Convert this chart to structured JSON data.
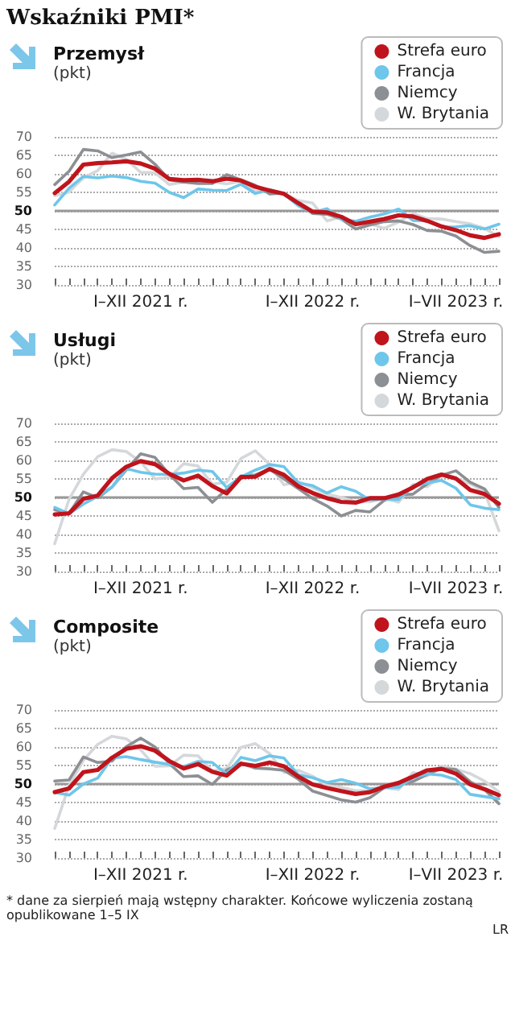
{
  "chart_data": [
    {
      "type": "line",
      "title": "Wskaźniki PMI*",
      "subtitle": "Przemysł",
      "ylabel": "(pkt)",
      "categories": [
        null,
        null,
        null,
        null,
        null,
        null,
        "I–XII 2021 r.",
        null,
        null,
        null,
        null,
        null,
        null,
        null,
        null,
        null,
        null,
        null,
        "I–XII 2022 r.",
        null,
        null,
        null,
        null,
        null,
        null,
        null,
        null,
        null,
        "I–VII 2023 r.",
        null,
        null,
        null
      ],
      "series": [
        {
          "name": "Strefa euro",
          "color": "#c0141c",
          "values": [
            54.8,
            57.9,
            62.5,
            62.9,
            63.1,
            63.4,
            62.8,
            61.4,
            58.6,
            58.3,
            58.4,
            58.0,
            58.7,
            58.2,
            56.5,
            55.5,
            54.6,
            52.1,
            49.8,
            49.6,
            48.4,
            46.4,
            47.1,
            47.8,
            48.8,
            48.5,
            47.3,
            45.8,
            44.8,
            43.4,
            42.7,
            43.7
          ]
        },
        {
          "name": "Francja",
          "color": "#6ec6ea",
          "values": [
            51.6,
            56.1,
            59.3,
            58.9,
            59.4,
            59.0,
            58.0,
            57.5,
            55.0,
            53.6,
            55.9,
            55.6,
            55.5,
            57.2,
            54.7,
            55.7,
            54.6,
            51.4,
            49.5,
            50.6,
            47.7,
            47.2,
            48.3,
            49.2,
            50.5,
            47.4,
            47.3,
            45.6,
            45.7,
            46.0,
            45.1,
            46.4
          ]
        },
        {
          "name": "Niemcy",
          "color": "#8c8f93",
          "values": [
            57.1,
            60.7,
            66.6,
            66.2,
            64.4,
            65.1,
            65.9,
            62.6,
            58.4,
            57.8,
            57.4,
            57.4,
            59.8,
            58.4,
            56.9,
            54.6,
            54.8,
            52.0,
            49.3,
            49.1,
            47.8,
            45.1,
            46.2,
            47.1,
            47.3,
            46.3,
            44.7,
            44.5,
            43.2,
            40.6,
            38.8,
            39.1
          ]
        },
        {
          "name": "W. Brytania",
          "color": "#d5d8da",
          "values": [
            54.1,
            55.1,
            58.9,
            60.9,
            65.6,
            63.9,
            60.4,
            60.3,
            57.1,
            57.8,
            58.1,
            57.9,
            57.3,
            58.0,
            55.2,
            55.8,
            54.6,
            52.8,
            52.1,
            47.3,
            48.4,
            46.2,
            46.5,
            45.3,
            47.0,
            49.3,
            47.9,
            47.8,
            47.1,
            46.5,
            45.3,
            43.0
          ]
        }
      ],
      "ylim": [
        30,
        70
      ],
      "yticks": [
        30,
        35,
        40,
        45,
        50,
        55,
        60,
        65,
        70
      ],
      "grid": "y",
      "legend": "top right",
      "marker": "none",
      "ref_lines": [
        {
          "axis": "y",
          "value": 50,
          "color": "#999999"
        }
      ]
    },
    {
      "type": "line",
      "title": "Usługi",
      "ylabel": "(pkt)",
      "categories": [
        null,
        null,
        null,
        null,
        null,
        null,
        "I–XII 2021 r.",
        null,
        null,
        null,
        null,
        null,
        null,
        null,
        null,
        null,
        null,
        null,
        "I–XII 2022 r.",
        null,
        null,
        null,
        null,
        null,
        null,
        null,
        null,
        null,
        "I–VII 2023 r.",
        null,
        null,
        null
      ],
      "series": [
        {
          "name": "Strefa euro",
          "color": "#c0141c",
          "values": [
            45.4,
            45.7,
            49.6,
            50.5,
            55.2,
            58.3,
            59.8,
            59.0,
            56.4,
            54.6,
            55.9,
            53.1,
            51.1,
            55.5,
            55.6,
            57.7,
            56.1,
            53.0,
            51.2,
            49.8,
            48.8,
            48.6,
            49.8,
            49.8,
            50.8,
            52.7,
            55.0,
            56.2,
            55.1,
            52.0,
            50.9,
            48.3
          ]
        },
        {
          "name": "Francja",
          "color": "#6ec6ea",
          "values": [
            47.3,
            45.6,
            48.2,
            50.3,
            52.8,
            57.8,
            56.8,
            56.3,
            56.2,
            56.6,
            57.4,
            57.0,
            52.7,
            55.5,
            57.4,
            58.9,
            58.3,
            53.9,
            53.2,
            51.2,
            52.9,
            51.7,
            49.3,
            49.5,
            49.4,
            53.1,
            53.9,
            54.6,
            52.5,
            48.0,
            47.1,
            46.7
          ]
        },
        {
          "name": "Niemcy",
          "color": "#8c8f93",
          "values": [
            46.7,
            45.7,
            51.5,
            49.9,
            52.8,
            57.5,
            61.8,
            60.8,
            56.2,
            52.4,
            52.7,
            48.7,
            52.2,
            55.8,
            56.1,
            57.6,
            55.0,
            52.4,
            49.7,
            47.7,
            45.0,
            46.5,
            46.1,
            49.2,
            50.7,
            50.9,
            53.7,
            56.0,
            57.2,
            54.1,
            52.3,
            47.3
          ]
        },
        {
          "name": "W. Brytania",
          "color": "#d5d8da",
          "values": [
            37.5,
            49.5,
            56.3,
            61.0,
            62.9,
            62.4,
            59.6,
            55.0,
            55.4,
            59.1,
            58.5,
            53.6,
            54.1,
            60.5,
            62.6,
            58.9,
            53.4,
            54.3,
            52.6,
            50.9,
            50.0,
            48.8,
            48.8,
            49.9,
            48.7,
            53.5,
            52.9,
            55.9,
            55.2,
            53.7,
            51.5,
            41.0
          ]
        }
      ],
      "ylim": [
        30,
        70
      ],
      "yticks": [
        30,
        35,
        40,
        45,
        50,
        55,
        60,
        65,
        70
      ],
      "grid": "y",
      "legend": "top right",
      "marker": "none",
      "ref_lines": [
        {
          "axis": "y",
          "value": 50,
          "color": "#999999"
        }
      ]
    },
    {
      "type": "line",
      "title": "Composite",
      "ylabel": "(pkt)",
      "categories": [
        null,
        null,
        null,
        null,
        null,
        null,
        "I–XII 2021 r.",
        null,
        null,
        null,
        null,
        null,
        null,
        null,
        null,
        null,
        null,
        null,
        "I–XII 2022 r.",
        null,
        null,
        null,
        null,
        null,
        null,
        null,
        null,
        null,
        "I–VII 2023 r.",
        null,
        null,
        null
      ],
      "series": [
        {
          "name": "Strefa euro",
          "color": "#c0141c",
          "values": [
            47.8,
            48.8,
            53.2,
            53.8,
            57.1,
            59.5,
            60.2,
            59.0,
            56.2,
            54.2,
            55.4,
            53.3,
            52.3,
            55.5,
            54.9,
            55.8,
            54.8,
            52.0,
            49.9,
            48.9,
            48.1,
            47.3,
            47.8,
            49.3,
            50.3,
            52.0,
            53.7,
            54.1,
            52.8,
            49.9,
            48.6,
            47.0
          ]
        },
        {
          "name": "Francja",
          "color": "#6ec6ea",
          "values": [
            47.7,
            47.0,
            50.0,
            51.6,
            57.0,
            57.4,
            56.6,
            55.9,
            55.3,
            54.7,
            56.1,
            55.8,
            52.7,
            57.2,
            56.3,
            57.6,
            57.0,
            52.5,
            51.7,
            50.4,
            51.2,
            50.2,
            48.7,
            49.1,
            49.1,
            51.7,
            52.7,
            52.4,
            51.2,
            47.2,
            46.6,
            46.0
          ]
        },
        {
          "name": "Niemcy",
          "color": "#8c8f93",
          "values": [
            50.8,
            51.1,
            57.3,
            55.8,
            56.2,
            60.1,
            62.4,
            60.0,
            55.5,
            52.0,
            52.2,
            49.9,
            53.8,
            55.6,
            54.3,
            54.1,
            53.7,
            51.3,
            48.1,
            46.9,
            45.7,
            45.1,
            46.3,
            49.0,
            49.9,
            50.7,
            52.6,
            54.2,
            53.9,
            50.6,
            48.5,
            44.7
          ]
        },
        {
          "name": "W. Brytania",
          "color": "#d5d8da",
          "values": [
            38.0,
            49.6,
            56.4,
            60.7,
            62.9,
            62.2,
            59.2,
            54.8,
            54.9,
            57.8,
            57.6,
            53.6,
            54.2,
            59.9,
            60.9,
            58.2,
            53.1,
            53.7,
            52.1,
            49.6,
            49.1,
            48.2,
            48.2,
            49.0,
            48.5,
            53.1,
            52.2,
            54.9,
            54.0,
            52.8,
            50.8,
            47.9
          ]
        }
      ],
      "ylim": [
        30,
        70
      ],
      "yticks": [
        30,
        35,
        40,
        45,
        50,
        55,
        60,
        65,
        70
      ],
      "grid": "y",
      "legend": "top right",
      "marker": "none",
      "ref_lines": [
        {
          "axis": "y",
          "value": 50,
          "color": "#999999"
        }
      ],
      "annotations": [
        "* dane za sierpień mają wstępny charakter. Końcowe wyliczenia zostaną opublikowane 1–5 IX",
        "LR"
      ]
    }
  ]
}
